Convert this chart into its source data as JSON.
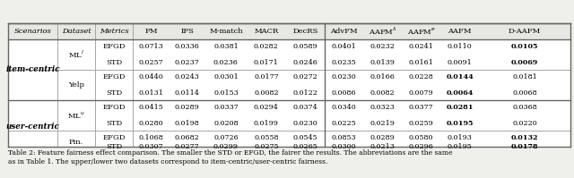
{
  "header": [
    "Scenarios",
    "Dataset",
    "Metrics",
    "FM",
    "IPS",
    "M-match",
    "MACR",
    "DecRS",
    "AdvFM",
    "AAFM$^\\lambda$",
    "AAFM$^e$",
    "AAFM",
    "D-AAFM"
  ],
  "rows": [
    {
      "scenario": "item-centric",
      "dataset": "ML$^l$",
      "metric": "EFGD",
      "values": [
        "0.0713",
        "0.0336",
        "0.0381",
        "0.0282",
        "0.0589",
        "0.0401",
        "0.0232",
        "0.0241",
        "0.0110",
        "0.0105"
      ],
      "bold_idx": 9
    },
    {
      "scenario": "item-centric",
      "dataset": "ML$^l$",
      "metric": "STD",
      "values": [
        "0.0257",
        "0.0237",
        "0.0236",
        "0.0171",
        "0.0246",
        "0.0235",
        "0.0139",
        "0.0161",
        "0.0091",
        "0.0069"
      ],
      "bold_idx": 9
    },
    {
      "scenario": "item-centric",
      "dataset": "Yelp",
      "metric": "EFGD",
      "values": [
        "0.0440",
        "0.0243",
        "0.0301",
        "0.0177",
        "0.0272",
        "0.0230",
        "0.0166",
        "0.0228",
        "0.0144",
        "0.0181"
      ],
      "bold_idx": 8
    },
    {
      "scenario": "item-centric",
      "dataset": "Yelp",
      "metric": "STD",
      "values": [
        "0.0131",
        "0.0114",
        "0.0153",
        "0.0082",
        "0.0122",
        "0.0086",
        "0.0082",
        "0.0079",
        "0.0064",
        "0.0068"
      ],
      "bold_idx": 8
    },
    {
      "scenario": "user-centric",
      "dataset": "ML$^u$",
      "metric": "EFGD",
      "values": [
        "0.0415",
        "0.0289",
        "0.0337",
        "0.0294",
        "0.0374",
        "0.0340",
        "0.0323",
        "0.0377",
        "0.0281",
        "0.0368"
      ],
      "bold_idx": 8
    },
    {
      "scenario": "user-centric",
      "dataset": "ML$^u$",
      "metric": "STD",
      "values": [
        "0.0280",
        "0.0198",
        "0.0208",
        "0.0199",
        "0.0230",
        "0.0225",
        "0.0219",
        "0.0259",
        "0.0195",
        "0.0220"
      ],
      "bold_idx": 8
    },
    {
      "scenario": "user-centric",
      "dataset": "Pin.",
      "metric": "EFGD",
      "values": [
        "0.1068",
        "0.0682",
        "0.0726",
        "0.0558",
        "0.0545",
        "0.0853",
        "0.0289",
        "0.0580",
        "0.0193",
        "0.0132"
      ],
      "bold_idx": 9
    },
    {
      "scenario": "user-centric",
      "dataset": "Pin.",
      "metric": "STD",
      "values": [
        "0.0307",
        "0.0277",
        "0.0299",
        "0.0275",
        "0.0265",
        "0.0300",
        "0.0213",
        "0.0296",
        "0.0195",
        "0.0178"
      ],
      "bold_idx": 9
    }
  ],
  "caption_line1": "Table 2: Feature fairness effect comparison. The smaller the STD or EFGD, the fairer the results. The abbreviations are the same",
  "caption_line2": "as in Table 1. The upper/lower two datasets correspond to item-centric/user-centric fairness.",
  "bg_color": "#f0f0eb",
  "table_bg": "#ffffff",
  "header_bg": "#e8e8e2",
  "border_color": "#999999",
  "thick_border": "#666666"
}
